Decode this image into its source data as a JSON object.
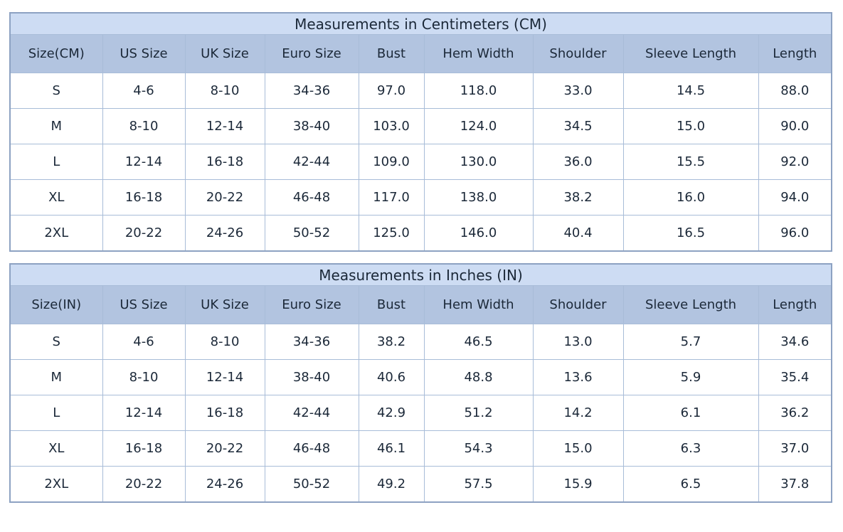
{
  "colors": {
    "title_row_bg": "#cddcf3",
    "header_row_bg": "#b2c4e0",
    "cell_bg": "#ffffff",
    "outer_border": "#8da2c2",
    "inner_border": "#a8bcd8",
    "text": "#1b2838"
  },
  "tables": [
    {
      "title": "Measurements in Centimeters (CM)",
      "columns": [
        "Size(CM)",
        "US Size",
        "UK Size",
        "Euro Size",
        "Bust",
        "Hem Width",
        "Shoulder",
        "Sleeve Length",
        "Length"
      ],
      "rows": [
        [
          "S",
          "4-6",
          "8-10",
          "34-36",
          "97.0",
          "118.0",
          "33.0",
          "14.5",
          "88.0"
        ],
        [
          "M",
          "8-10",
          "12-14",
          "38-40",
          "103.0",
          "124.0",
          "34.5",
          "15.0",
          "90.0"
        ],
        [
          "L",
          "12-14",
          "16-18",
          "42-44",
          "109.0",
          "130.0",
          "36.0",
          "15.5",
          "92.0"
        ],
        [
          "XL",
          "16-18",
          "20-22",
          "46-48",
          "117.0",
          "138.0",
          "38.2",
          "16.0",
          "94.0"
        ],
        [
          "2XL",
          "20-22",
          "24-26",
          "50-52",
          "125.0",
          "146.0",
          "40.4",
          "16.5",
          "96.0"
        ]
      ]
    },
    {
      "title": "Measurements in Inches (IN)",
      "columns": [
        "Size(IN)",
        "US Size",
        "UK Size",
        "Euro Size",
        "Bust",
        "Hem Width",
        "Shoulder",
        "Sleeve Length",
        "Length"
      ],
      "rows": [
        [
          "S",
          "4-6",
          "8-10",
          "34-36",
          "38.2",
          "46.5",
          "13.0",
          "5.7",
          "34.6"
        ],
        [
          "M",
          "8-10",
          "12-14",
          "38-40",
          "40.6",
          "48.8",
          "13.6",
          "5.9",
          "35.4"
        ],
        [
          "L",
          "12-14",
          "16-18",
          "42-44",
          "42.9",
          "51.2",
          "14.2",
          "6.1",
          "36.2"
        ],
        [
          "XL",
          "16-18",
          "20-22",
          "46-48",
          "46.1",
          "54.3",
          "15.0",
          "6.3",
          "37.0"
        ],
        [
          "2XL",
          "20-22",
          "24-26",
          "50-52",
          "49.2",
          "57.5",
          "15.9",
          "6.5",
          "37.8"
        ]
      ]
    }
  ],
  "chart_data": [
    {
      "type": "table",
      "title": "Measurements in Centimeters (CM)",
      "columns": [
        "Size(CM)",
        "US Size",
        "UK Size",
        "Euro Size",
        "Bust",
        "Hem Width",
        "Shoulder",
        "Sleeve Length",
        "Length"
      ],
      "rows": [
        [
          "S",
          "4-6",
          "8-10",
          "34-36",
          97.0,
          118.0,
          33.0,
          14.5,
          88.0
        ],
        [
          "M",
          "8-10",
          "12-14",
          "38-40",
          103.0,
          124.0,
          34.5,
          15.0,
          90.0
        ],
        [
          "L",
          "12-14",
          "16-18",
          "42-44",
          109.0,
          130.0,
          36.0,
          15.5,
          92.0
        ],
        [
          "XL",
          "16-18",
          "20-22",
          "46-48",
          117.0,
          138.0,
          38.2,
          16.0,
          94.0
        ],
        [
          "2XL",
          "20-22",
          "24-26",
          "50-52",
          125.0,
          146.0,
          40.4,
          16.5,
          96.0
        ]
      ]
    },
    {
      "type": "table",
      "title": "Measurements in Inches (IN)",
      "columns": [
        "Size(IN)",
        "US Size",
        "UK Size",
        "Euro Size",
        "Bust",
        "Hem Width",
        "Shoulder",
        "Sleeve Length",
        "Length"
      ],
      "rows": [
        [
          "S",
          "4-6",
          "8-10",
          "34-36",
          38.2,
          46.5,
          13.0,
          5.7,
          34.6
        ],
        [
          "M",
          "8-10",
          "12-14",
          "38-40",
          40.6,
          48.8,
          13.6,
          5.9,
          35.4
        ],
        [
          "L",
          "12-14",
          "16-18",
          "42-44",
          42.9,
          51.2,
          14.2,
          6.1,
          36.2
        ],
        [
          "XL",
          "16-18",
          "20-22",
          "46-48",
          46.1,
          54.3,
          15.0,
          6.3,
          37.0
        ],
        [
          "2XL",
          "20-22",
          "24-26",
          "50-52",
          49.2,
          57.5,
          15.9,
          6.5,
          37.8
        ]
      ]
    }
  ]
}
